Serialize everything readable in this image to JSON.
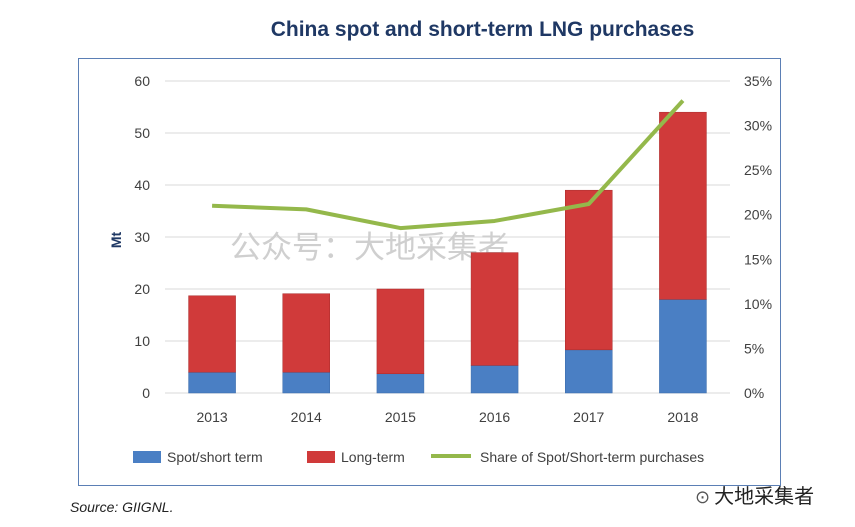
{
  "title": "China spot and short-term LNG purchases",
  "source": "Source: GIIGNL.",
  "watermark": "公众号：大地采集者",
  "brand": "大地采集者",
  "colors": {
    "spot": "#4a7fc4",
    "long": "#d03a3a",
    "share": "#94b84b"
  },
  "chart_data": {
    "type": "bar",
    "stacked": true,
    "categories": [
      "2013",
      "2014",
      "2015",
      "2016",
      "2017",
      "2018"
    ],
    "series": [
      {
        "name": "Spot/short term",
        "values": [
          4,
          4,
          3.7,
          5.3,
          8.3,
          18
        ]
      },
      {
        "name": "Long-term",
        "values": [
          14.7,
          15.1,
          16.3,
          21.7,
          30.7,
          36
        ]
      },
      {
        "name": "Share of Spot/Short-term purchases",
        "type": "line",
        "axis": "right",
        "values": [
          21,
          20.6,
          18.5,
          19.3,
          21.2,
          32.8
        ]
      }
    ],
    "ylabel": "Mt",
    "ylim": [
      0,
      60
    ],
    "yticks": [
      "0",
      "10",
      "20",
      "30",
      "40",
      "50",
      "60"
    ],
    "y2lim": [
      0,
      35
    ],
    "y2ticks": [
      "0%",
      "5%",
      "10%",
      "15%",
      "20%",
      "25%",
      "30%",
      "35%"
    ],
    "legend_position": "bottom"
  }
}
